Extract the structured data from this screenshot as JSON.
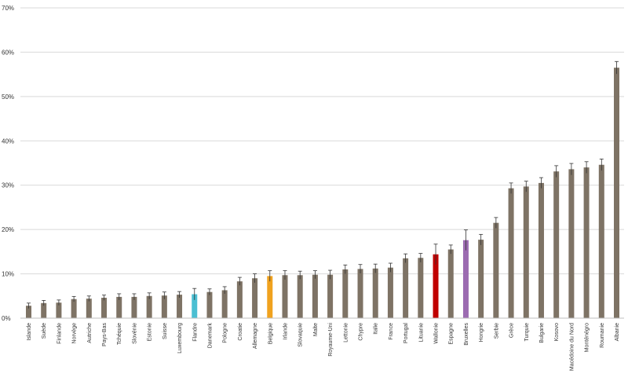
{
  "chart_data": {
    "type": "bar",
    "title": "",
    "xlabel": "",
    "ylabel": "",
    "ylim": [
      0,
      70
    ],
    "yticks": [
      0,
      10,
      20,
      30,
      40,
      50,
      60,
      70
    ],
    "ytick_labels": [
      "0%",
      "10%",
      "20%",
      "30%",
      "40%",
      "50%",
      "60%",
      "70%"
    ],
    "grid": true,
    "legend": "none",
    "default_color": "#7e7365",
    "categories": [
      "Islande",
      "Suède",
      "Finlande",
      "Norvège",
      "Autriche",
      "Pays-Bas",
      "Tchéquie",
      "Slovénie",
      "Estonie",
      "Suisse",
      "Luxembourg",
      "Flandre",
      "Danemark",
      "Pologne",
      "Croatie",
      "Allemagne",
      "Belgique",
      "Irlande",
      "Slovaquie",
      "Malte",
      "Royaume-Uni",
      "Lettonie",
      "Chypre",
      "Italie",
      "France",
      "Portugal",
      "Lituanie",
      "Wallonie",
      "Espagne",
      "Bruxelles",
      "Hongrie",
      "Serbie",
      "Grèce",
      "Turquie",
      "Bulgarie",
      "Kosovo",
      "Macédoine du Nord",
      "Monténégro",
      "Roumanie",
      "Albanie"
    ],
    "values": [
      2.8,
      3.4,
      3.5,
      4.3,
      4.4,
      4.6,
      4.8,
      4.8,
      5.0,
      5.1,
      5.3,
      5.4,
      5.9,
      6.3,
      8.3,
      9.0,
      9.5,
      9.7,
      9.7,
      9.8,
      9.8,
      11.0,
      11.1,
      11.2,
      11.4,
      13.5,
      13.6,
      14.4,
      15.5,
      17.6,
      17.7,
      21.5,
      29.3,
      29.7,
      30.5,
      33.1,
      33.6,
      34.0,
      34.6,
      56.5
    ],
    "errors": [
      0.6,
      0.6,
      0.6,
      0.6,
      0.6,
      0.6,
      0.7,
      0.7,
      0.7,
      0.8,
      0.7,
      1.3,
      0.7,
      0.8,
      0.9,
      1.0,
      1.2,
      1.0,
      0.9,
      0.9,
      1.0,
      1.0,
      1.0,
      1.0,
      1.0,
      1.0,
      1.0,
      2.3,
      1.0,
      2.3,
      1.2,
      1.2,
      1.2,
      1.2,
      1.2,
      1.3,
      1.3,
      1.3,
      1.3,
      1.4
    ],
    "highlight_colors": {
      "Flandre": "#4bbfd2",
      "Belgique": "#f0a21e",
      "Wallonie": "#c00000",
      "Bruxelles": "#9c6bb1"
    }
  }
}
